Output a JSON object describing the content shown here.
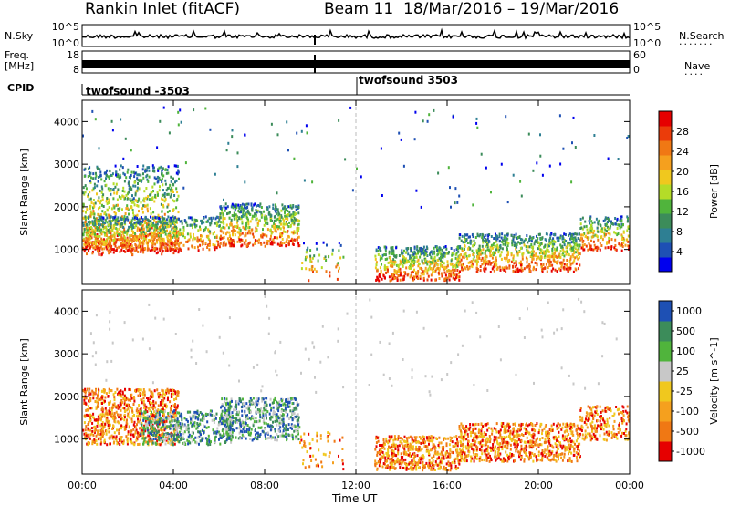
{
  "header": {
    "station": "Rankin Inlet (fitACF)",
    "beam": "Beam 11",
    "date_range": "18/Mar/2016 – 19/Mar/2016"
  },
  "aux_panels": {
    "nsky_label": "N.Sky",
    "nsky_ticks": [
      "10^5",
      "10^0"
    ],
    "nsearch_label": "N.Search",
    "nsearch_ticks": [
      "10^5",
      "10^0"
    ],
    "freq_label": "Freq.",
    "freq_unit": "[MHz]",
    "freq_ticks": [
      "18",
      "8"
    ],
    "nave_label": "Nave",
    "nave_ticks": [
      "60",
      "0"
    ],
    "cpid_label": "CPID",
    "cpid_segments": [
      "twofsound -3503",
      "twofsound 3503"
    ]
  },
  "x_axis": {
    "label": "Time UT",
    "ticks": [
      "00:00",
      "04:00",
      "08:00",
      "12:00",
      "16:00",
      "20:00",
      "00:00"
    ]
  },
  "chart_data": [
    {
      "type": "heatmap",
      "name": "power",
      "xlabel": "Time UT",
      "ylabel": "Slant Range [km]",
      "x_ticks": [
        "00:00",
        "04:00",
        "08:00",
        "12:00",
        "16:00",
        "20:00",
        "00:00"
      ],
      "xlim_hours": [
        0,
        24
      ],
      "y_ticks": [
        1000,
        2000,
        3000,
        4000
      ],
      "ylim": [
        180,
        4500
      ],
      "colorbar_label": "Power [dB]",
      "colorbar_ticks": [
        4,
        8,
        12,
        16,
        20,
        24,
        28
      ],
      "colorbar_colors": [
        "#0000ee",
        "#1e50b4",
        "#2e7f93",
        "#3c8c5a",
        "#50b43c",
        "#b4dc28",
        "#f0c81e",
        "#f5a01e",
        "#f07814",
        "#eb3c0a",
        "#e60000"
      ],
      "data": [
        [
          [
            0.0,
            4.2,
            900,
            3000,
            0.45
          ],
          [
            0.0,
            4.2,
            1000,
            1800,
            0.95
          ],
          [
            4.2,
            6.0,
            1000,
            1800,
            0.55
          ],
          [
            6.0,
            9.5,
            1100,
            2100,
            0.75
          ],
          [
            9.5,
            11.5,
            300,
            1200,
            0.15
          ],
          [
            12.8,
            16.5,
            300,
            1100,
            0.85
          ],
          [
            16.5,
            21.8,
            500,
            1400,
            0.8
          ],
          [
            21.8,
            24.0,
            1000,
            1800,
            0.6
          ]
        ]
      ],
      "note_values": "each entry [t_start_h, t_end_h, range_min_km, range_max_km, scatter_density]"
    },
    {
      "type": "heatmap",
      "name": "velocity",
      "xlabel": "Time UT",
      "ylabel": "Slant Range [km]",
      "x_ticks": [
        "00:00",
        "04:00",
        "08:00",
        "12:00",
        "16:00",
        "20:00",
        "00:00"
      ],
      "xlim_hours": [
        0,
        24
      ],
      "y_ticks": [
        1000,
        2000,
        3000,
        4000
      ],
      "ylim": [
        180,
        4500
      ],
      "colorbar_label": "Velocity [m s^-1]",
      "colorbar_ticks": [
        1000,
        500,
        100,
        25,
        -25,
        -100,
        -500,
        -1000
      ],
      "colorbar_colors": [
        "#1e50b4",
        "#3c8c5a",
        "#50b43c",
        "#c8c8c8",
        "#f0c81e",
        "#f5a01e",
        "#f07814",
        "#e60000"
      ],
      "data": [
        [
          [
            0.0,
            4.2,
            900,
            2200,
            0.8
          ],
          [
            2.5,
            6.5,
            900,
            1700,
            0.7
          ],
          [
            6.0,
            9.5,
            1000,
            2000,
            0.75
          ],
          [
            9.5,
            11.5,
            300,
            1200,
            0.15
          ],
          [
            12.8,
            16.5,
            300,
            1100,
            0.85
          ],
          [
            16.5,
            21.8,
            500,
            1400,
            0.8
          ],
          [
            21.8,
            24.0,
            1000,
            1800,
            0.6
          ]
        ]
      ]
    }
  ]
}
